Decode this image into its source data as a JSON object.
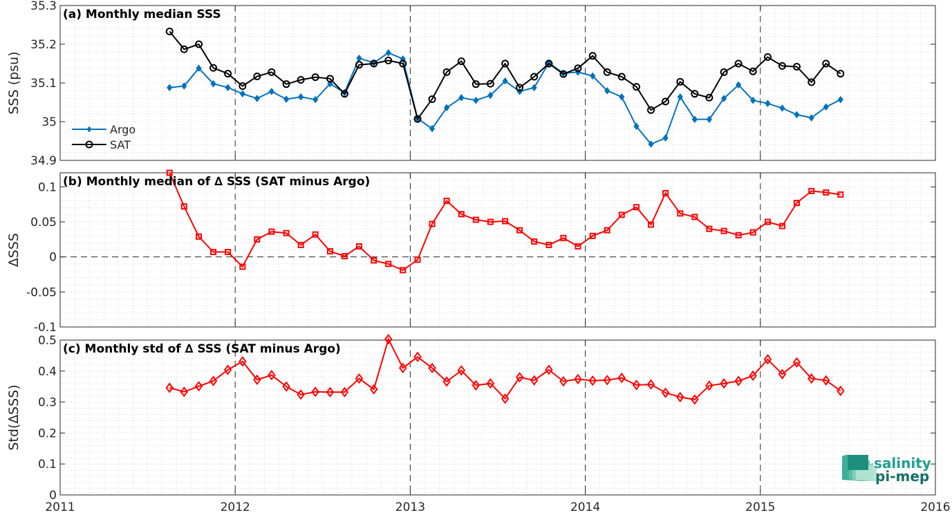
{
  "chart_data": [
    {
      "type": "line",
      "title": "(a) Monthly median SSS",
      "ylabel": "SSS (psu)",
      "xlim": [
        2011,
        2016
      ],
      "ylim": [
        34.9,
        35.3
      ],
      "yticks": [
        34.9,
        35,
        35.1,
        35.2,
        35.3
      ],
      "ytick_labels": [
        "34.9",
        "35",
        "35.1",
        "35.2",
        "35.3"
      ],
      "x": [
        2011.625,
        2011.708,
        2011.792,
        2011.875,
        2011.958,
        2012.042,
        2012.125,
        2012.208,
        2012.292,
        2012.375,
        2012.458,
        2012.542,
        2012.625,
        2012.708,
        2012.792,
        2012.875,
        2012.958,
        2013.042,
        2013.125,
        2013.208,
        2013.292,
        2013.375,
        2013.458,
        2013.542,
        2013.625,
        2013.708,
        2013.792,
        2013.875,
        2013.958,
        2014.042,
        2014.125,
        2014.208,
        2014.292,
        2014.375,
        2014.458,
        2014.542,
        2014.625,
        2014.708,
        2014.792,
        2014.875,
        2014.958,
        2015.042,
        2015.125,
        2015.208,
        2015.292,
        2015.375,
        2015.458
      ],
      "series": [
        {
          "name": "Argo",
          "color": "#0072bd",
          "marker": "diamond-filled",
          "values": [
            35.088,
            35.092,
            35.138,
            35.098,
            35.088,
            35.072,
            35.06,
            35.078,
            35.058,
            35.064,
            35.057,
            35.098,
            35.075,
            35.164,
            35.152,
            35.178,
            35.162,
            35.008,
            34.982,
            35.036,
            35.062,
            35.055,
            35.068,
            35.105,
            35.078,
            35.088,
            35.152,
            35.125,
            35.128,
            35.118,
            35.08,
            35.064,
            34.988,
            34.942,
            34.958,
            35.064,
            35.006,
            35.006,
            35.06,
            35.095,
            35.055,
            35.047,
            35.035,
            35.018,
            35.01,
            35.038,
            35.057
          ]
        },
        {
          "name": "SAT",
          "color": "#000000",
          "marker": "circle-open",
          "values": [
            35.233,
            35.187,
            35.2,
            35.139,
            35.124,
            35.092,
            35.117,
            35.128,
            35.097,
            35.108,
            35.115,
            35.111,
            35.072,
            35.147,
            35.15,
            35.158,
            35.15,
            35.007,
            35.058,
            35.128,
            35.156,
            35.097,
            35.098,
            35.15,
            35.088,
            35.116,
            35.15,
            35.123,
            35.138,
            35.17,
            35.128,
            35.116,
            35.09,
            35.03,
            35.052,
            35.103,
            35.072,
            35.062,
            35.128,
            35.15,
            35.13,
            35.167,
            35.144,
            35.142,
            35.102,
            35.15,
            35.124
          ]
        }
      ],
      "legend": {
        "position": "lower-left",
        "entries": [
          "Argo",
          "SAT"
        ]
      },
      "grid": "dotted minor",
      "vertical_lines": [
        2012,
        2013,
        2014,
        2015
      ]
    },
    {
      "type": "line",
      "title": "(b) Monthly median of ∆ SSS (SAT minus Argo)",
      "ylabel": "∆SSS",
      "xlim": [
        2011,
        2016
      ],
      "ylim": [
        -0.1,
        0.12
      ],
      "yticks": [
        -0.1,
        -0.05,
        0,
        0.05,
        0.1
      ],
      "ytick_labels": [
        "-0.1",
        "-0.05",
        "0",
        "0.05",
        "0.1"
      ],
      "x": [
        2011.625,
        2011.708,
        2011.792,
        2011.875,
        2011.958,
        2012.042,
        2012.125,
        2012.208,
        2012.292,
        2012.375,
        2012.458,
        2012.542,
        2012.625,
        2012.708,
        2012.792,
        2012.875,
        2012.958,
        2013.042,
        2013.125,
        2013.208,
        2013.292,
        2013.375,
        2013.458,
        2013.542,
        2013.625,
        2013.708,
        2013.792,
        2013.875,
        2013.958,
        2014.042,
        2014.125,
        2014.208,
        2014.292,
        2014.375,
        2014.458,
        2014.542,
        2014.625,
        2014.708,
        2014.792,
        2014.875,
        2014.958,
        2015.042,
        2015.125,
        2015.208,
        2015.292,
        2015.375,
        2015.458
      ],
      "series": [
        {
          "name": "",
          "color": "#ff0000",
          "marker": "square-open",
          "values": [
            0.12,
            0.072,
            0.029,
            0.007,
            0.007,
            -0.014,
            0.025,
            0.036,
            0.034,
            0.017,
            0.032,
            0.008,
            0.001,
            0.015,
            -0.005,
            -0.01,
            -0.019,
            -0.004,
            0.047,
            0.08,
            0.061,
            0.053,
            0.05,
            0.051,
            0.038,
            0.022,
            0.017,
            0.027,
            0.015,
            0.03,
            0.038,
            0.06,
            0.071,
            0.046,
            0.091,
            0.062,
            0.057,
            0.04,
            0.037,
            0.031,
            0.035,
            0.05,
            0.044,
            0.077,
            0.094,
            0.092,
            0.089
          ]
        }
      ],
      "grid": "dotted minor",
      "zero_line": true,
      "vertical_lines": [
        2012,
        2013,
        2014,
        2015
      ]
    },
    {
      "type": "line",
      "title": "(c) Monthly std of ∆ SSS (SAT minus Argo)",
      "ylabel": "Std(∆SSS)",
      "xlim": [
        2011,
        2016
      ],
      "ylim": [
        0,
        0.5
      ],
      "yticks": [
        0,
        0.1,
        0.2,
        0.3,
        0.4,
        0.5
      ],
      "ytick_labels": [
        "0",
        "0.1",
        "0.2",
        "0.3",
        "0.4",
        "0.5"
      ],
      "xticks": [
        2011,
        2012,
        2013,
        2014,
        2015,
        2016
      ],
      "xtick_labels": [
        "2011",
        "2012",
        "2013",
        "2014",
        "2015",
        "2016"
      ],
      "x": [
        2011.625,
        2011.708,
        2011.792,
        2011.875,
        2011.958,
        2012.042,
        2012.125,
        2012.208,
        2012.292,
        2012.375,
        2012.458,
        2012.542,
        2012.625,
        2012.708,
        2012.792,
        2012.875,
        2012.958,
        2013.042,
        2013.125,
        2013.208,
        2013.292,
        2013.375,
        2013.458,
        2013.542,
        2013.625,
        2013.708,
        2013.792,
        2013.875,
        2013.958,
        2014.042,
        2014.125,
        2014.208,
        2014.292,
        2014.375,
        2014.458,
        2014.542,
        2014.625,
        2014.708,
        2014.792,
        2014.875,
        2014.958,
        2015.042,
        2015.125,
        2015.208,
        2015.292,
        2015.375,
        2015.458
      ],
      "series": [
        {
          "name": "",
          "color": "#ff0000",
          "marker": "diamond-open",
          "values": [
            0.346,
            0.333,
            0.351,
            0.368,
            0.404,
            0.431,
            0.372,
            0.387,
            0.35,
            0.324,
            0.333,
            0.332,
            0.332,
            0.376,
            0.341,
            0.503,
            0.41,
            0.446,
            0.41,
            0.366,
            0.402,
            0.354,
            0.36,
            0.311,
            0.38,
            0.37,
            0.404,
            0.367,
            0.374,
            0.369,
            0.371,
            0.378,
            0.355,
            0.357,
            0.33,
            0.316,
            0.308,
            0.353,
            0.36,
            0.368,
            0.385,
            0.438,
            0.39,
            0.428,
            0.376,
            0.37,
            0.336
          ]
        }
      ],
      "grid": "dotted minor",
      "vertical_lines": [
        2012,
        2013,
        2014,
        2015
      ]
    }
  ],
  "logo": {
    "line1": "salinity",
    "line2": "pi-mep"
  }
}
